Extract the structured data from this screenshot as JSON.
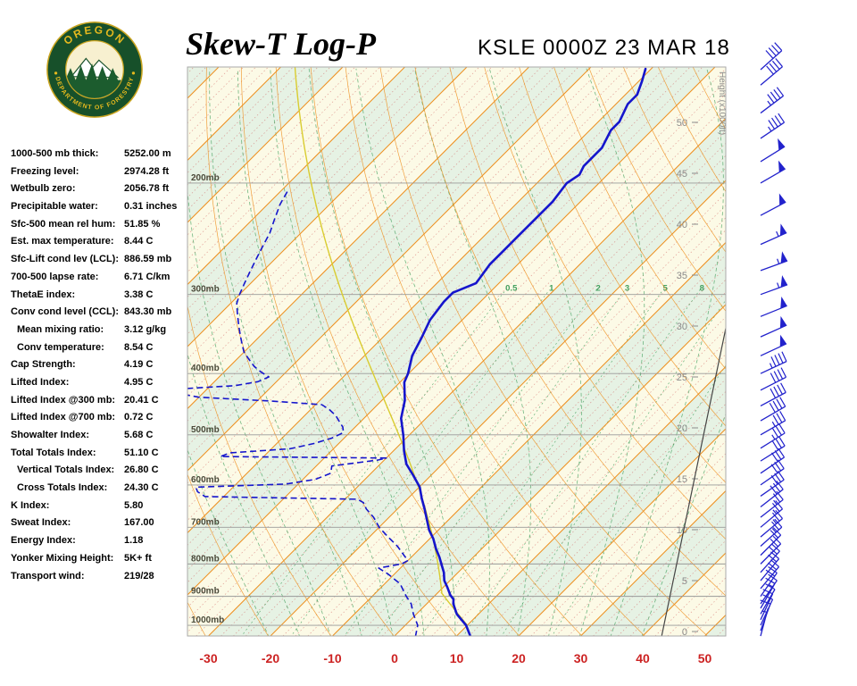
{
  "header": {
    "title": "Skew-T Log-P",
    "station": "KSLE 0000Z 23 MAR 18",
    "logo_top": "OREGON",
    "logo_bottom": "DEPARTMENT OF FORESTRY"
  },
  "indices": [
    {
      "label": "1000-500 mb thick:",
      "value": "5252.00 m",
      "indent": false
    },
    {
      "label": "Freezing level:",
      "value": "2974.28 ft",
      "indent": false
    },
    {
      "label": "Wetbulb zero:",
      "value": "2056.78 ft",
      "indent": false
    },
    {
      "label": "Precipitable water:",
      "value": "0.31 inches",
      "indent": false
    },
    {
      "label": "Sfc-500 mean rel hum:",
      "value": "51.85 %",
      "indent": false
    },
    {
      "label": "Est. max temperature:",
      "value": "8.44 C",
      "indent": false
    },
    {
      "label": "Sfc-Lift cond lev (LCL):",
      "value": "886.59 mb",
      "indent": false
    },
    {
      "label": "700-500 lapse rate:",
      "value": "6.71 C/km",
      "indent": false
    },
    {
      "label": "ThetaE index:",
      "value": "3.38 C",
      "indent": false
    },
    {
      "label": "Conv cond level (CCL):",
      "value": "843.30 mb",
      "indent": false
    },
    {
      "label": "Mean mixing ratio:",
      "value": "3.12 g/kg",
      "indent": true
    },
    {
      "label": "Conv temperature:",
      "value": "8.54 C",
      "indent": true
    },
    {
      "label": "Cap Strength:",
      "value": "4.19 C",
      "indent": false
    },
    {
      "label": "Lifted Index:",
      "value": "4.95 C",
      "indent": false
    },
    {
      "label": "Lifted Index @300 mb:",
      "value": "20.41 C",
      "indent": false
    },
    {
      "label": "Lifted Index @700 mb:",
      "value": "0.72 C",
      "indent": false
    },
    {
      "label": "Showalter Index:",
      "value": "5.68 C",
      "indent": false
    },
    {
      "label": "Total Totals Index:",
      "value": "51.10 C",
      "indent": false
    },
    {
      "label": "Vertical Totals Index:",
      "value": "26.80 C",
      "indent": true
    },
    {
      "label": "Cross Totals Index:",
      "value": "24.30 C",
      "indent": true
    },
    {
      "label": "K Index:",
      "value": "5.80",
      "indent": false
    },
    {
      "label": "Sweat Index:",
      "value": "167.00",
      "indent": false
    },
    {
      "label": "Energy Index:",
      "value": "1.18",
      "indent": false
    },
    {
      "label": "Yonker Mixing Height:",
      "value": "5K+ ft",
      "indent": false
    },
    {
      "label": "Transport wind:",
      "value": "219/28",
      "indent": false
    }
  ],
  "chart_data": {
    "type": "skewt-log-p",
    "title": "Skew-T Log-P",
    "station_time": "KSLE 0000Z 23 MAR 18",
    "temp_axis_ticks_c": [
      -30,
      -20,
      -10,
      0,
      10,
      20,
      30,
      40,
      50
    ],
    "pressure_levels_mb": [
      200,
      300,
      400,
      500,
      600,
      700,
      800,
      900,
      1000
    ],
    "pressure_range_mb": [
      130,
      1043
    ],
    "height_ticks_kft": [
      0,
      5,
      10,
      15,
      20,
      25,
      30,
      35,
      40,
      45,
      50
    ],
    "height_axis_label": "Height (x1000ft)",
    "isotherm_step_c": 10,
    "mixing_ratio_lines_gkg": [
      0.5,
      1,
      2,
      3,
      5,
      8,
      12,
      20
    ],
    "mixing_ratio_labels": [
      "0.5",
      "1",
      "2",
      "3",
      "5",
      "8"
    ],
    "moist_adiabat_starts_c": [
      -20,
      -15,
      -10,
      -5,
      0,
      5,
      10,
      15,
      20,
      25,
      30,
      35,
      40
    ],
    "dry_adiabat_thetas_k": [
      240,
      250,
      260,
      270,
      280,
      290,
      300,
      310,
      320,
      330,
      340,
      350,
      360,
      370,
      380,
      390,
      400,
      410,
      420,
      430,
      440
    ],
    "colors": {
      "isotherm": "#ee8f1f",
      "red_dotted": "#cc5555",
      "green_lines": "#44a05f",
      "band_green": "#e6f2e4",
      "band_cream": "#fcfae6",
      "isobar": "#999999",
      "profile_blue": "#1515cc",
      "parcel_yellow": "#d9cc30",
      "axis_red": "#cc2222",
      "height_gray": "#8a8a8a",
      "reference_dark": "#444444",
      "barb_blue": "#2222cc"
    },
    "sounding": {
      "temperature_p_t": [
        [
          1043,
          12.4
        ],
        [
          1000,
          9.8
        ],
        [
          960,
          6.5
        ],
        [
          925,
          4.3
        ],
        [
          910,
          3.6
        ],
        [
          896,
          2.4
        ],
        [
          870,
          0.6
        ],
        [
          850,
          -0.9
        ],
        [
          825,
          -2.3
        ],
        [
          805,
          -3.7
        ],
        [
          780,
          -5.5
        ],
        [
          758,
          -7.3
        ],
        [
          730,
          -9.4
        ],
        [
          707,
          -11.5
        ],
        [
          680,
          -13.6
        ],
        [
          654,
          -15.7
        ],
        [
          630,
          -17.8
        ],
        [
          605,
          -19.9
        ],
        [
          580,
          -22.8
        ],
        [
          556,
          -25.8
        ],
        [
          530,
          -28.3
        ],
        [
          501,
          -30.9
        ],
        [
          471,
          -34.0
        ],
        [
          441,
          -36.3
        ],
        [
          413,
          -39.3
        ],
        [
          400,
          -40.1
        ],
        [
          375,
          -42.3
        ],
        [
          351,
          -43.7
        ],
        [
          329,
          -45.2
        ],
        [
          308,
          -45.9
        ],
        [
          298,
          -45.9
        ],
        [
          288,
          -43.7
        ],
        [
          269,
          -44.5
        ],
        [
          256,
          -44.5
        ],
        [
          244,
          -44.5
        ],
        [
          233,
          -44.5
        ],
        [
          221,
          -44.5
        ],
        [
          214,
          -44.5
        ],
        [
          200,
          -45.2
        ],
        [
          194,
          -44.5
        ],
        [
          188,
          -45.2
        ],
        [
          176,
          -45.2
        ],
        [
          165,
          -46.6
        ],
        [
          160,
          -46.6
        ],
        [
          150,
          -48.1
        ],
        [
          145,
          -48.1
        ],
        [
          138,
          -49.5
        ],
        [
          132,
          -50.9
        ]
      ],
      "dewpoint_p_td": [
        [
          1043,
          3.5
        ],
        [
          1000,
          2.0
        ],
        [
          960,
          -0.5
        ],
        [
          925,
          -2.5
        ],
        [
          900,
          -4.5
        ],
        [
          860,
          -7.5
        ],
        [
          830,
          -11.0
        ],
        [
          812,
          -13.5
        ],
        [
          800,
          -10.5
        ],
        [
          790,
          -10.0
        ],
        [
          775,
          -11.5
        ],
        [
          750,
          -14.0
        ],
        [
          725,
          -17.0
        ],
        [
          700,
          -20.0
        ],
        [
          675,
          -22.5
        ],
        [
          655,
          -25.0
        ],
        [
          640,
          -26.5
        ],
        [
          632,
          -28.0
        ],
        [
          626,
          -53.0
        ],
        [
          615,
          -55.0
        ],
        [
          605,
          -56.0
        ],
        [
          598,
          -42.0
        ],
        [
          588,
          -38.0
        ],
        [
          575,
          -36.5
        ],
        [
          560,
          -37.5
        ],
        [
          548,
          -31.0
        ],
        [
          544,
          -30.0
        ],
        [
          541,
          -57.0
        ],
        [
          534,
          -56.0
        ],
        [
          526,
          -47.0
        ],
        [
          516,
          -44.0
        ],
        [
          506,
          -42.0
        ],
        [
          496,
          -41.0
        ],
        [
          486,
          -42.0
        ],
        [
          476,
          -43.5
        ],
        [
          466,
          -45.0
        ],
        [
          456,
          -47.0
        ],
        [
          448,
          -49.0
        ],
        [
          442,
          -58.0
        ],
        [
          436,
          -70.0
        ],
        [
          430,
          -74.0
        ],
        [
          424,
          -76.0
        ],
        [
          418,
          -66.0
        ],
        [
          412,
          -63.0
        ],
        [
          405,
          -62.0
        ],
        [
          398,
          -64.0
        ],
        [
          390,
          -66.0
        ],
        [
          380,
          -68.0
        ],
        [
          370,
          -70.0
        ],
        [
          360,
          -71.5
        ],
        [
          350,
          -73.0
        ],
        [
          340,
          -74.5
        ],
        [
          330,
          -76.0
        ],
        [
          320,
          -77.5
        ],
        [
          310,
          -79.0
        ],
        [
          300,
          -80.0
        ],
        [
          288,
          -81.0
        ],
        [
          276,
          -82.0
        ],
        [
          264,
          -83.0
        ],
        [
          252,
          -84.0
        ],
        [
          240,
          -85.0
        ],
        [
          228,
          -86.5
        ],
        [
          216,
          -88.0
        ],
        [
          205,
          -89.0
        ]
      ],
      "parcel": {
        "surface_p": 1000,
        "surface_t": 10,
        "lcl_p": 886.6
      },
      "winds_p_dir_spd": [
        [
          1040,
          195,
          5
        ],
        [
          1020,
          200,
          8
        ],
        [
          1000,
          205,
          10
        ],
        [
          980,
          205,
          10
        ],
        [
          960,
          210,
          12
        ],
        [
          940,
          210,
          15
        ],
        [
          925,
          215,
          15
        ],
        [
          900,
          215,
          18
        ],
        [
          875,
          220,
          18
        ],
        [
          850,
          220,
          20
        ],
        [
          825,
          222,
          20
        ],
        [
          800,
          225,
          20
        ],
        [
          775,
          225,
          22
        ],
        [
          750,
          228,
          25
        ],
        [
          725,
          230,
          25
        ],
        [
          700,
          230,
          25
        ],
        [
          675,
          232,
          27
        ],
        [
          650,
          232,
          28
        ],
        [
          625,
          235,
          30
        ],
        [
          600,
          235,
          30
        ],
        [
          575,
          236,
          32
        ],
        [
          550,
          238,
          32
        ],
        [
          525,
          238,
          35
        ],
        [
          500,
          240,
          35
        ],
        [
          475,
          240,
          38
        ],
        [
          450,
          242,
          40
        ],
        [
          425,
          243,
          42
        ],
        [
          400,
          245,
          45
        ],
        [
          375,
          245,
          48
        ],
        [
          350,
          246,
          50
        ],
        [
          325,
          248,
          52
        ],
        [
          300,
          250,
          55
        ],
        [
          275,
          250,
          55
        ],
        [
          250,
          246,
          55
        ],
        [
          225,
          242,
          52
        ],
        [
          200,
          240,
          50
        ],
        [
          185,
          238,
          48
        ],
        [
          170,
          236,
          45
        ],
        [
          155,
          233,
          45
        ],
        [
          140,
          230,
          42
        ],
        [
          130,
          228,
          40
        ]
      ]
    }
  }
}
